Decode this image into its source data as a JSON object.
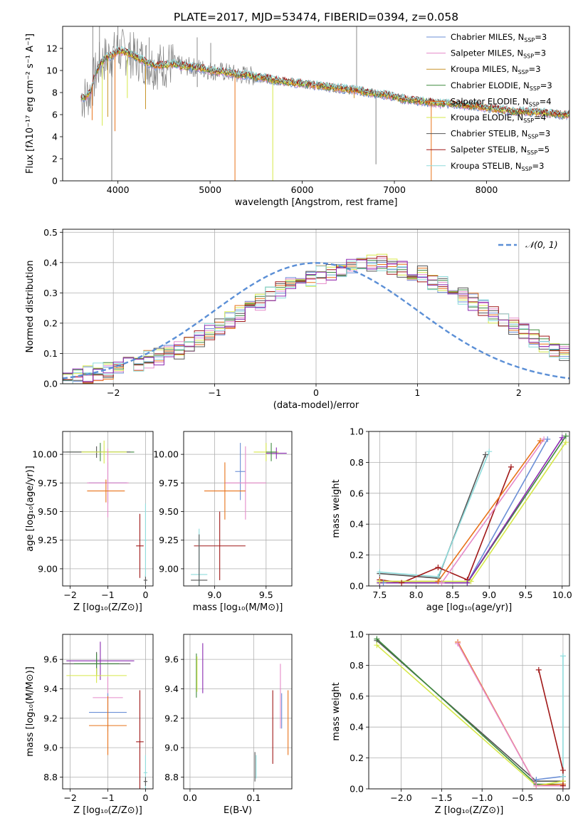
{
  "figure": {
    "title": "PLATE=2017, MJD=53474, FIBERID=0394, z=0.058"
  },
  "colors": {
    "Chabrier MILES": "#6b8fd6",
    "Salpeter MILES": "#e58ac9",
    "Kroupa MILES": "#c8942a",
    "Chabrier ELODIE": "#3f8a3f",
    "Salpeter ELODIE": "#e8731a",
    "Kroupa ELODIE": "#d6e84a",
    "Chabrier STELIB": "#555555",
    "Salpeter STELIB": "#a01818",
    "Kroupa STELIB": "#8fdcdc",
    "extra_purple": "#8a2ab0",
    "data_grey": "#808080",
    "normal_fit": "#5b8fd6"
  },
  "chart_data": [
    {
      "type": "line",
      "panel": "spectrum",
      "xlabel": "wavelength [Angstrom, rest frame]",
      "ylabel": "Flux [fλ10⁻¹⁷ erg cm⁻² s⁻¹ A⁻¹]",
      "xlim": [
        3400,
        8900
      ],
      "ylim": [
        0,
        14
      ],
      "xticks": [
        4000,
        5000,
        6000,
        7000,
        8000
      ],
      "yticks": [
        0,
        2,
        4,
        6,
        8,
        10,
        12
      ],
      "grid": false,
      "legend_position": "top-right",
      "legend": [
        {
          "name": "Chabrier MILES",
          "sub": "SSP",
          "n": "3"
        },
        {
          "name": "Salpeter MILES",
          "sub": "SSP",
          "n": "3"
        },
        {
          "name": "Kroupa MILES",
          "sub": "SSP",
          "n": "3"
        },
        {
          "name": "Chabrier ELODIE",
          "sub": "SSP",
          "n": "3"
        },
        {
          "name": "Salpeter ELODIE",
          "sub": "SSP",
          "n": "4"
        },
        {
          "name": "Kroupa ELODIE",
          "sub": "SSP",
          "n": "4"
        },
        {
          "name": "Chabrier STELIB",
          "sub": "SSP",
          "n": "3"
        },
        {
          "name": "Salpeter STELIB",
          "sub": "SSP",
          "n": "5"
        },
        {
          "name": "Kroupa STELIB",
          "sub": "SSP",
          "n": "3"
        }
      ],
      "model_continuum": {
        "x": [
          3600,
          3650,
          3700,
          3750,
          3800,
          3850,
          3900,
          3950,
          4000,
          4100,
          4200,
          4300,
          4400,
          4500,
          4600,
          4700,
          4800,
          4900,
          5000,
          5100,
          5200,
          5300,
          5400,
          5500,
          5600,
          5700,
          5800,
          5900,
          6000,
          6100,
          6200,
          6300,
          6400,
          6500,
          6600,
          6700,
          6800,
          6900,
          7000,
          7100,
          7200,
          7300,
          7400,
          7500,
          7600,
          7700,
          7800,
          7900,
          8000,
          8100,
          8200,
          8300,
          8400,
          8500,
          8600,
          8700,
          8800,
          8900
        ],
        "y": [
          7.5,
          7.6,
          8.0,
          9.5,
          10.5,
          11.0,
          11.3,
          11.4,
          11.8,
          11.6,
          11.2,
          10.8,
          10.4,
          10.5,
          10.6,
          10.4,
          10.3,
          10.2,
          10.0,
          9.9,
          9.8,
          9.6,
          9.6,
          9.4,
          9.3,
          9.1,
          9.0,
          8.9,
          8.8,
          8.7,
          8.6,
          8.5,
          8.4,
          8.3,
          8.2,
          8.0,
          7.9,
          7.8,
          7.6,
          7.4,
          7.3,
          7.2,
          7.1,
          7.0,
          7.0,
          6.9,
          6.8,
          6.8,
          6.6,
          6.5,
          6.4,
          6.3,
          6.3,
          6.2,
          6.2,
          6.1,
          6.0,
          6.0
        ]
      },
      "absorption_spikes": [
        {
          "x": 3720,
          "y": 5.5
        },
        {
          "x": 3830,
          "y": 5.0
        },
        {
          "x": 3890,
          "y": 5.8
        },
        {
          "x": 3933,
          "y": 0
        },
        {
          "x": 3968,
          "y": 4.5
        },
        {
          "x": 4102,
          "y": 7.5
        },
        {
          "x": 4300,
          "y": 6.5
        },
        {
          "x": 4861,
          "y": 8.5
        },
        {
          "x": 5270,
          "y": 0
        },
        {
          "x": 5680,
          "y": 0
        },
        {
          "x": 6563,
          "y": 7.5
        },
        {
          "x": 6800,
          "y": 1.5
        },
        {
          "x": 7400,
          "y": 0
        }
      ],
      "emission_spikes": [
        {
          "x": 3727,
          "y": 14
        },
        {
          "x": 3800,
          "y": 14
        },
        {
          "x": 4000,
          "y": 14
        },
        {
          "x": 4340,
          "y": 13
        },
        {
          "x": 4860,
          "y": 13
        },
        {
          "x": 5007,
          "y": 12.5
        },
        {
          "x": 6590,
          "y": 14
        }
      ]
    },
    {
      "type": "histogram",
      "panel": "residuals",
      "xlabel": "(data-model)/error",
      "ylabel": "Normed distribution",
      "xlim": [
        -2.5,
        2.5
      ],
      "ylim": [
        0,
        0.51
      ],
      "xticks": [
        -2,
        -1,
        0,
        1,
        2
      ],
      "yticks": [
        0.0,
        0.1,
        0.2,
        0.3,
        0.4,
        0.5
      ],
      "grid": true,
      "legend_position": "top-right",
      "legend": [
        {
          "name": "𝒩(0, 1)",
          "style": "dashed"
        }
      ],
      "bin_width": 0.1,
      "bin_start": -2.5,
      "base_values": [
        0.02,
        0.025,
        0.03,
        0.04,
        0.045,
        0.05,
        0.06,
        0.07,
        0.08,
        0.09,
        0.1,
        0.11,
        0.13,
        0.15,
        0.17,
        0.19,
        0.21,
        0.23,
        0.25,
        0.27,
        0.29,
        0.31,
        0.33,
        0.34,
        0.35,
        0.36,
        0.37,
        0.38,
        0.39,
        0.4,
        0.4,
        0.4,
        0.39,
        0.38,
        0.37,
        0.36,
        0.34,
        0.33,
        0.31,
        0.29,
        0.27,
        0.25,
        0.23,
        0.21,
        0.19,
        0.17,
        0.15,
        0.13,
        0.11,
        0.1
      ],
      "normal_curve": {
        "mean": 0,
        "sigma": 1
      }
    },
    {
      "type": "errorbar",
      "panel": "age_vs_Z",
      "xlabel": "Z [log₁₀(Z/Z⊙)]",
      "ylabel": "age  [log₁₀(age/yr)]",
      "xlim": [
        -2.2,
        0.2
      ],
      "ylim": [
        8.85,
        10.2
      ],
      "xticks": [
        -2,
        -1,
        0
      ],
      "yticks": [
        9.0,
        9.25,
        9.5,
        9.75,
        10.0
      ],
      "grid": true,
      "points": [
        {
          "x": -1.2,
          "y": 10.02,
          "xerr": 0.9,
          "yerr": 0.08,
          "c": "Chabrier ELODIE"
        },
        {
          "x": -1.3,
          "y": 10.02,
          "xerr": 0.9,
          "yerr": 0.05,
          "c": "Chabrier STELIB"
        },
        {
          "x": -1.1,
          "y": 10.02,
          "xerr": 0.6,
          "yerr": 0.1,
          "c": "Kroupa ELODIE"
        },
        {
          "x": -1.0,
          "y": 9.75,
          "xerr": 0.5,
          "yerr": 0.18,
          "c": "Chabrier MILES"
        },
        {
          "x": -1.0,
          "y": 9.75,
          "xerr": 0.55,
          "yerr": 0.3,
          "c": "Salpeter MILES"
        },
        {
          "x": -1.05,
          "y": 9.68,
          "xerr": 0.5,
          "yerr": 0.1,
          "c": "Salpeter ELODIE"
        },
        {
          "x": -0.15,
          "y": 9.2,
          "xerr": 0.1,
          "yerr": 0.28,
          "c": "Salpeter STELIB"
        },
        {
          "x": 0.0,
          "y": 8.9,
          "xerr": 0.05,
          "yerr": 0.04,
          "c": "Chabrier STELIB"
        },
        {
          "x": 0.0,
          "y": 9.25,
          "xerr": 0.03,
          "yerr": 0.32,
          "c": "Kroupa STELIB"
        }
      ]
    },
    {
      "type": "errorbar",
      "panel": "age_vs_mass",
      "xlabel": "mass [log₁₀(M/M⊙)]",
      "ylabel": "",
      "xlim": [
        8.7,
        9.75
      ],
      "ylim": [
        8.85,
        10.2
      ],
      "xticks": [
        9.0,
        9.5
      ],
      "yticks": [
        9.0,
        9.25,
        9.5,
        9.75,
        10.0
      ],
      "grid": true,
      "points": [
        {
          "x": 9.5,
          "y": 10.02,
          "xerr": 0.12,
          "yerr": 0.08,
          "c": "Kroupa ELODIE"
        },
        {
          "x": 9.6,
          "y": 10.01,
          "xerr": 0.1,
          "yerr": 0.05,
          "c": "extra_purple"
        },
        {
          "x": 9.55,
          "y": 10.02,
          "xerr": 0.05,
          "yerr": 0.08,
          "c": "Chabrier ELODIE"
        },
        {
          "x": 9.25,
          "y": 9.85,
          "xerr": 0.05,
          "yerr": 0.25,
          "c": "Chabrier MILES"
        },
        {
          "x": 9.3,
          "y": 9.75,
          "xerr": 0.2,
          "yerr": 0.32,
          "c": "Salpeter MILES"
        },
        {
          "x": 9.1,
          "y": 9.68,
          "xerr": 0.2,
          "yerr": 0.25,
          "c": "Salpeter ELODIE"
        },
        {
          "x": 9.05,
          "y": 9.2,
          "xerr": 0.25,
          "yerr": 0.3,
          "c": "Salpeter STELIB"
        },
        {
          "x": 8.85,
          "y": 8.95,
          "xerr": 0.08,
          "yerr": 0.4,
          "c": "Kroupa STELIB"
        },
        {
          "x": 8.85,
          "y": 8.9,
          "xerr": 0.08,
          "yerr": 0.4,
          "c": "Chabrier STELIB"
        }
      ]
    },
    {
      "type": "line",
      "panel": "massweight_vs_age",
      "xlabel": "age  [log₁₀(age/yr)]",
      "ylabel": "mass weight",
      "xlim": [
        7.35,
        10.1
      ],
      "ylim": [
        0,
        1.0
      ],
      "xticks": [
        7.5,
        8.0,
        8.5,
        9.0,
        9.5,
        10.0
      ],
      "yticks": [
        0.0,
        0.2,
        0.4,
        0.6,
        0.8,
        1.0
      ],
      "grid": true,
      "series": [
        {
          "c": "Chabrier STELIB",
          "x": [
            7.5,
            8.3,
            8.95
          ],
          "y": [
            0.08,
            0.05,
            0.85
          ]
        },
        {
          "c": "Kroupa STELIB",
          "x": [
            7.5,
            8.3,
            9.0
          ],
          "y": [
            0.09,
            0.06,
            0.87
          ]
        },
        {
          "c": "Salpeter STELIB",
          "x": [
            7.5,
            7.8,
            8.3,
            8.7,
            9.3
          ],
          "y": [
            0.04,
            0.02,
            0.12,
            0.04,
            0.77
          ]
        },
        {
          "c": "Salpeter ELODIE",
          "x": [
            7.5,
            8.3,
            9.7
          ],
          "y": [
            0.03,
            0.03,
            0.94
          ]
        },
        {
          "c": "Salpeter MILES",
          "x": [
            7.55,
            8.35,
            9.75
          ],
          "y": [
            0.02,
            0.02,
            0.95
          ]
        },
        {
          "c": "Chabrier MILES",
          "x": [
            7.55,
            8.7,
            9.8
          ],
          "y": [
            0.02,
            0.02,
            0.95
          ]
        },
        {
          "c": "Chabrier ELODIE",
          "x": [
            7.5,
            8.7,
            10.05
          ],
          "y": [
            0.02,
            0.02,
            0.97
          ]
        },
        {
          "c": "extra_purple",
          "x": [
            7.5,
            8.7,
            10.0
          ],
          "y": [
            0.02,
            0.02,
            0.96
          ]
        },
        {
          "c": "Kroupa ELODIE",
          "x": [
            7.5,
            8.75,
            10.05
          ],
          "y": [
            0.03,
            0.03,
            0.93
          ]
        }
      ]
    },
    {
      "type": "errorbar",
      "panel": "mass_vs_Z",
      "xlabel": "Z [log₁₀(Z/Z⊙)]",
      "ylabel": "mass [log₁₀(M/M⊙)]",
      "xlim": [
        -2.2,
        0.2
      ],
      "ylim": [
        8.72,
        9.77
      ],
      "xticks": [
        -2,
        -1,
        0
      ],
      "yticks": [
        8.8,
        9.0,
        9.2,
        9.4,
        9.6
      ],
      "grid": true,
      "points": [
        {
          "x": -1.2,
          "y": 9.59,
          "xerr": 0.9,
          "yerr": 0.13,
          "c": "extra_purple"
        },
        {
          "x": -1.3,
          "y": 9.57,
          "xerr": 0.9,
          "yerr": 0.08,
          "c": "Chabrier STELIB"
        },
        {
          "x": -1.3,
          "y": 9.57,
          "xerr": 0.6,
          "yerr": 0.07,
          "c": "Chabrier ELODIE"
        },
        {
          "x": -1.3,
          "y": 9.49,
          "xerr": 0.8,
          "yerr": 0.05,
          "c": "Kroupa ELODIE"
        },
        {
          "x": -1.0,
          "y": 9.34,
          "xerr": 0.4,
          "yerr": 0.14,
          "c": "Salpeter MILES"
        },
        {
          "x": -1.0,
          "y": 9.24,
          "xerr": 0.5,
          "yerr": 0.13,
          "c": "Chabrier MILES"
        },
        {
          "x": -1.0,
          "y": 9.15,
          "xerr": 0.5,
          "yerr": 0.2,
          "c": "Salpeter ELODIE"
        },
        {
          "x": -0.15,
          "y": 9.04,
          "xerr": 0.1,
          "yerr": 0.35,
          "c": "Salpeter STELIB"
        },
        {
          "x": 0.0,
          "y": 8.83,
          "xerr": 0.05,
          "yerr": 0.12,
          "c": "Kroupa STELIB"
        },
        {
          "x": 0.0,
          "y": 8.77,
          "xerr": 0.05,
          "yerr": 0.03,
          "c": "Chabrier STELIB"
        }
      ]
    },
    {
      "type": "errorbar",
      "panel": "mass_vs_EBV",
      "xlabel": "E(B-V)",
      "ylabel": "",
      "xlim": [
        -0.01,
        0.16
      ],
      "ylim": [
        8.72,
        9.77
      ],
      "xticks": [
        0.0,
        0.1
      ],
      "yticks": [
        8.8,
        9.0,
        9.2,
        9.4,
        9.6
      ],
      "grid": true,
      "points": [
        {
          "x": 0.01,
          "y": 9.49,
          "xerr": 0,
          "yerr": 0.15,
          "c": "Chabrier ELODIE"
        },
        {
          "x": 0.011,
          "y": 9.5,
          "xerr": 0,
          "yerr": 0.12,
          "c": "Kroupa ELODIE"
        },
        {
          "x": 0.02,
          "y": 9.54,
          "xerr": 0,
          "yerr": 0.17,
          "c": "extra_purple"
        },
        {
          "x": 0.102,
          "y": 8.87,
          "xerr": 0,
          "yerr": 0.1,
          "c": "Chabrier STELIB"
        },
        {
          "x": 0.104,
          "y": 8.87,
          "xerr": 0,
          "yerr": 0.08,
          "c": "Kroupa STELIB"
        },
        {
          "x": 0.13,
          "y": 9.14,
          "xerr": 0,
          "yerr": 0.25,
          "c": "Salpeter STELIB"
        },
        {
          "x": 0.142,
          "y": 9.35,
          "xerr": 0,
          "yerr": 0.22,
          "c": "Salpeter MILES"
        },
        {
          "x": 0.144,
          "y": 9.25,
          "xerr": 0,
          "yerr": 0.12,
          "c": "Chabrier MILES"
        },
        {
          "x": 0.154,
          "y": 9.17,
          "xerr": 0,
          "yerr": 0.22,
          "c": "Salpeter ELODIE"
        }
      ]
    },
    {
      "type": "line",
      "panel": "massweight_vs_Z",
      "xlabel": "Z [log₁₀(Z/Z⊙)]",
      "ylabel": "mass weight",
      "xlim": [
        -2.4,
        0.08
      ],
      "ylim": [
        0,
        1.0
      ],
      "xticks": [
        -2.0,
        -1.5,
        -1.0,
        -0.5,
        0.0
      ],
      "yticks": [
        0.0,
        0.2,
        0.4,
        0.6,
        0.8,
        1.0
      ],
      "grid": true,
      "series": [
        {
          "c": "Chabrier STELIB",
          "x": [
            -2.3,
            -0.33,
            0.0
          ],
          "y": [
            0.96,
            0.05,
            0.05
          ]
        },
        {
          "c": "Chabrier ELODIE",
          "x": [
            -2.3,
            -0.33,
            0.0
          ],
          "y": [
            0.97,
            0.03,
            0.03
          ]
        },
        {
          "c": "Kroupa ELODIE",
          "x": [
            -2.3,
            -0.33,
            0.0
          ],
          "y": [
            0.93,
            0.02,
            0.05
          ]
        },
        {
          "c": "Salpeter ELODIE",
          "x": [
            -1.3,
            -0.33,
            0.0
          ],
          "y": [
            0.95,
            0.02,
            0.03
          ]
        },
        {
          "c": "Salpeter MILES",
          "x": [
            -1.3,
            -0.33,
            0.0
          ],
          "y": [
            0.94,
            0.02,
            0.02
          ]
        },
        {
          "c": "Chabrier MILES",
          "x": [
            -0.33,
            0.0
          ],
          "y": [
            0.06,
            0.08
          ]
        },
        {
          "c": "Kroupa STELIB",
          "x": [
            0.0,
            0.0
          ],
          "y": [
            0.86,
            0.08
          ]
        },
        {
          "c": "Salpeter STELIB",
          "x": [
            -0.3,
            0.0,
            0.0
          ],
          "y": [
            0.77,
            0.12,
            0.02
          ]
        }
      ]
    }
  ]
}
